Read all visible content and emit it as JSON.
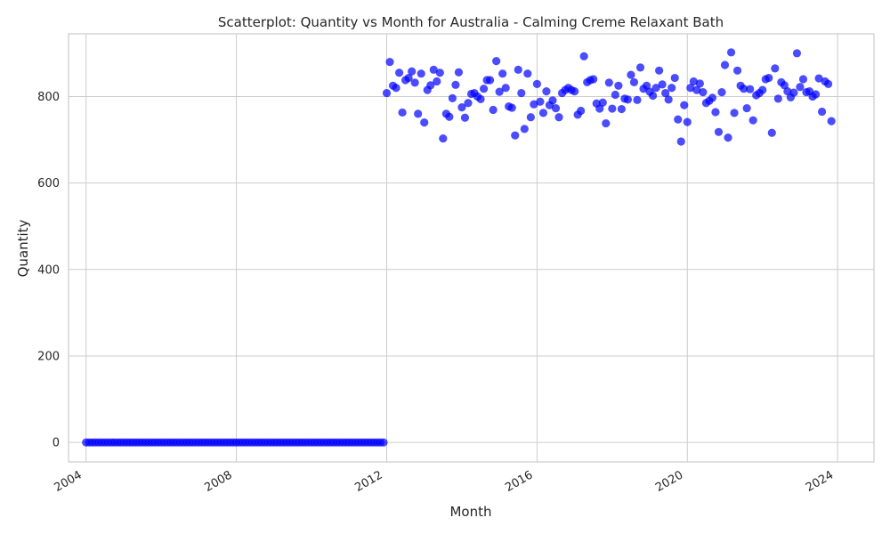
{
  "chart_data": {
    "type": "scatter",
    "title": "Scatterplot: Quantity vs Month for Australia - Calming Creme Relaxant Bath",
    "xlabel": "Month",
    "ylabel": "Quantity",
    "x_ticks": [
      "2004",
      "2008",
      "2012",
      "2016",
      "2020",
      "2024"
    ],
    "y_ticks": [
      0,
      200,
      400,
      600,
      800
    ],
    "xlim": [
      "2003-07",
      "2024-12"
    ],
    "ylim": [
      -45,
      945
    ],
    "grid": true,
    "marker_color": "#0000ff",
    "series": [
      {
        "start_month": "2004-01",
        "values": [
          0,
          0,
          0,
          0,
          0,
          0,
          0,
          0,
          0,
          0,
          0,
          0,
          0,
          0,
          0,
          0,
          0,
          0,
          0,
          0,
          0,
          0,
          0,
          0,
          0,
          0,
          0,
          0,
          0,
          0,
          0,
          0,
          0,
          0,
          0,
          0,
          0,
          0,
          0,
          0,
          0,
          0,
          0,
          0,
          0,
          0,
          0,
          0,
          0,
          0,
          0,
          0,
          0,
          0,
          0,
          0,
          0,
          0,
          0,
          0,
          0,
          0,
          0,
          0,
          0,
          0,
          0,
          0,
          0,
          0,
          0,
          0,
          0,
          0,
          0,
          0,
          0,
          0,
          0,
          0,
          0,
          0,
          0,
          0,
          0,
          0,
          0,
          0,
          0,
          0,
          0,
          0,
          0,
          0,
          0,
          0,
          808,
          880,
          825,
          820,
          855,
          763,
          838,
          843,
          858,
          832,
          760,
          853,
          740,
          815,
          826,
          862,
          835,
          855,
          703,
          760,
          753,
          796,
          827,
          856,
          775,
          751,
          785,
          806,
          808,
          800,
          794,
          818,
          838,
          838,
          769,
          882,
          811,
          853,
          820,
          777,
          774,
          710,
          862,
          808,
          725,
          853,
          752,
          782,
          829,
          788,
          762,
          812,
          780,
          791,
          773,
          752,
          808,
          815,
          820,
          815,
          812,
          758,
          767,
          893,
          833,
          838,
          840,
          784,
          772,
          786,
          738,
          832,
          772,
          804,
          825,
          771,
          795,
          793,
          850,
          833,
          792,
          867,
          818,
          825,
          811,
          802,
          820,
          860,
          828,
          808,
          793,
          820,
          843,
          747,
          696,
          780,
          741,
          820,
          835,
          815,
          830,
          810,
          785,
          790,
          797,
          764,
          718,
          810,
          873,
          705,
          902,
          762,
          860,
          825,
          818,
          773,
          817,
          745,
          803,
          808,
          815,
          840,
          843,
          716,
          865,
          795,
          833,
          826,
          812,
          798,
          809,
          900,
          822,
          840,
          810,
          812,
          800,
          805,
          842,
          765,
          835,
          829,
          743
        ]
      }
    ]
  }
}
